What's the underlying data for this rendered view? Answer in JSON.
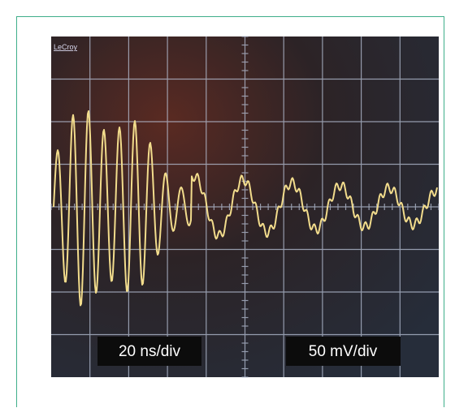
{
  "screen": {
    "brand": "LeCroy",
    "time_scale": "20 ns/div",
    "voltage_scale": "50 mV/div"
  }
}
